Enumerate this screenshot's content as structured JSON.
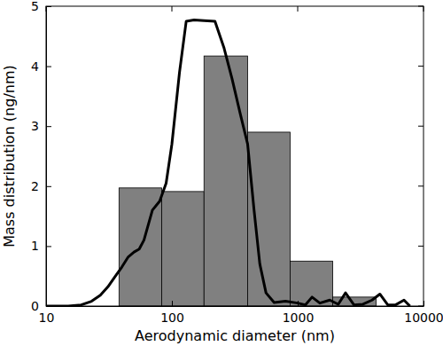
{
  "chart_data": {
    "type": "histogram",
    "x_label": "Aerodynamic diameter (nm)",
    "y_label": "Mass distribution (ng/nm)",
    "bins": [
      38,
      83,
      180,
      400,
      870,
      1900,
      4200
    ],
    "values": [
      1.97,
      1.91,
      4.17,
      2.9,
      0.75,
      0.15
    ],
    "color": "#808080",
    "series": [
      {
        "type": "line",
        "color": "#000000",
        "x": [
          10,
          15,
          19,
          23,
          27,
          31,
          35,
          40,
          45,
          50,
          55,
          60,
          70,
          80,
          90,
          100,
          115,
          130,
          150,
          180,
          220,
          260,
          300,
          350,
          400,
          450,
          500,
          560,
          650,
          800,
          1000,
          1150,
          1300,
          1500,
          1800,
          2100,
          2400,
          2800,
          3300,
          3900,
          4500,
          5200,
          6000,
          7000,
          7800
        ],
        "values": [
          0,
          0,
          0.02,
          0.08,
          0.18,
          0.32,
          0.48,
          0.65,
          0.82,
          0.9,
          0.95,
          1.1,
          1.6,
          1.75,
          2.05,
          2.7,
          3.9,
          4.75,
          4.77,
          4.76,
          4.75,
          4.3,
          3.8,
          3.2,
          2.7,
          1.6,
          0.7,
          0.22,
          0.06,
          0.08,
          0.05,
          0.02,
          0.15,
          0.05,
          0.1,
          0.03,
          0.22,
          0.02,
          0.03,
          0.1,
          0.2,
          0.02,
          0.02,
          0.1,
          0
        ]
      }
    ],
    "log": "x",
    "xlim": [
      10,
      10000
    ],
    "ylim": [
      0,
      5
    ],
    "xticks": [
      10,
      100,
      1000,
      10000
    ],
    "yticks": [
      0,
      1,
      2,
      3,
      4,
      5
    ],
    "grid": false
  }
}
